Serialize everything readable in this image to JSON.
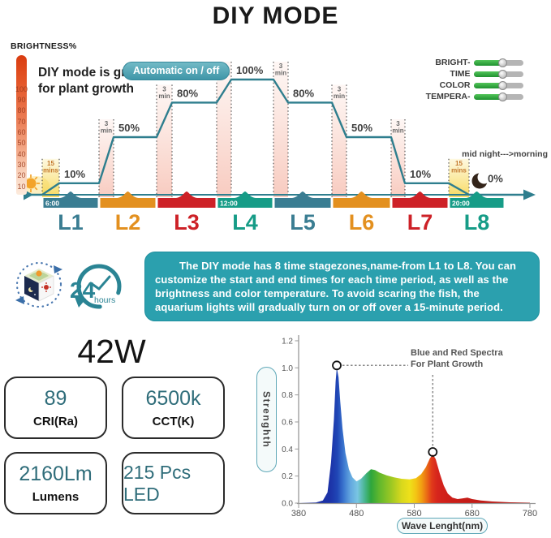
{
  "title": "DIY MODE",
  "timeline": {
    "brightness_label": "BRIGHTNESS%",
    "tagline_line1": "DIY mode is great",
    "tagline_line2": "for plant growth",
    "auto_pill_label": "Automatic on / off",
    "sliders": [
      {
        "label": "BRIGHT-"
      },
      {
        "label": "TIME"
      },
      {
        "label": "COLOR"
      },
      {
        "label": "TEMPERA-"
      }
    ],
    "midnight_note": "mid night--->morning"
  },
  "description": {
    "text": "The DIY mode has 8 time stagezones,name-from L1 to L8. You can customize the start and end times for each time period, as well as the brightness and color temperature. To avoid scaring the fish, the aquarium lights will gradually turn on or off over a 15-minute period."
  },
  "cycle_icons": {
    "hours_value": "24",
    "hours_unit": "hours"
  },
  "specs": {
    "wattage": "42W",
    "boxes": [
      {
        "value": "89",
        "caption": "CRI(Ra)"
      },
      {
        "value": "6500k",
        "caption": "CCT(K)"
      },
      {
        "value": "2160Lm",
        "caption": "Lumens"
      },
      {
        "value": "215 Pcs LED",
        "caption": ""
      }
    ]
  },
  "spectrum_labels": {
    "ylabel": "Strenghth",
    "xlabel": "Wave Lenght(nm)",
    "annotation_line1": "Blue and Red Spectra",
    "annotation_line2": "For Plant Growth"
  },
  "colors": {
    "accent_teal": "#2a8494",
    "curve_teal": "#2e7e8e",
    "description_bg": "#2ba0ae",
    "thermometer_top": "#d93c10",
    "spec_value_teal": "#2f6d7a"
  },
  "chart_data": [
    {
      "type": "line",
      "title": "DIY mode 24h brightness schedule",
      "ylabel": "BRIGHTNESS%",
      "y_ticks": [
        100,
        90,
        80,
        70,
        60,
        50,
        40,
        30,
        20,
        10
      ],
      "x_times_shown": [
        "6:00",
        "12:00",
        "20:00"
      ],
      "stages": [
        {
          "label": "L1",
          "start_time": "6:00",
          "brightness_pct": 10,
          "level_label": "10%",
          "ramp_label": "15 mins",
          "bar_color": "#3a7d92"
        },
        {
          "label": "L2",
          "brightness_pct": 50,
          "level_label": "50%",
          "ramp_label": "3 min",
          "bar_color": "#e3901f"
        },
        {
          "label": "L3",
          "brightness_pct": 80,
          "level_label": "80%",
          "ramp_label": "3 min",
          "bar_color": "#cd2127"
        },
        {
          "label": "L4",
          "start_time": "12:00",
          "brightness_pct": 100,
          "level_label": "100%",
          "ramp_label": "3 min",
          "bar_color": "#169c87"
        },
        {
          "label": "L5",
          "brightness_pct": 80,
          "level_label": "80%",
          "ramp_label": "3 min",
          "bar_color": "#3a7d92"
        },
        {
          "label": "L6",
          "brightness_pct": 50,
          "level_label": "50%",
          "ramp_label": "3 min",
          "bar_color": "#e3901f"
        },
        {
          "label": "L7",
          "brightness_pct": 10,
          "level_label": "10%",
          "ramp_label": "3 min",
          "bar_color": "#cd2127"
        },
        {
          "label": "L8",
          "start_time": "20:00",
          "brightness_pct": 0,
          "level_label": "0%",
          "ramp_label": "15 mins",
          "bar_color": "#169c87"
        }
      ]
    },
    {
      "type": "area",
      "xlabel": "Wave Lenght(nm)",
      "ylabel": "Strenghth",
      "xlim": [
        380,
        780
      ],
      "ylim": [
        0,
        1.2
      ],
      "x_ticks": [
        380,
        480,
        580,
        680,
        780
      ],
      "y_ticks": [
        0.0,
        0.2,
        0.4,
        0.6,
        0.8,
        1.0,
        1.2
      ],
      "annotation": "Blue and Red Spectra For Plant Growth",
      "peaks": [
        {
          "wavelength_nm": 446,
          "strength": 1.0
        },
        {
          "wavelength_nm": 612,
          "strength": 0.36
        }
      ],
      "points": [
        [
          380,
          0
        ],
        [
          410,
          0.005
        ],
        [
          422,
          0.02
        ],
        [
          430,
          0.08
        ],
        [
          436,
          0.3
        ],
        [
          441,
          0.62
        ],
        [
          444,
          0.9
        ],
        [
          446,
          1.0
        ],
        [
          449,
          0.93
        ],
        [
          452,
          0.75
        ],
        [
          456,
          0.55
        ],
        [
          461,
          0.37
        ],
        [
          467,
          0.25
        ],
        [
          473,
          0.19
        ],
        [
          480,
          0.16
        ],
        [
          488,
          0.18
        ],
        [
          497,
          0.22
        ],
        [
          505,
          0.25
        ],
        [
          512,
          0.245
        ],
        [
          520,
          0.225
        ],
        [
          532,
          0.205
        ],
        [
          545,
          0.19
        ],
        [
          558,
          0.18
        ],
        [
          572,
          0.175
        ],
        [
          583,
          0.185
        ],
        [
          592,
          0.215
        ],
        [
          600,
          0.265
        ],
        [
          607,
          0.33
        ],
        [
          612,
          0.36
        ],
        [
          617,
          0.325
        ],
        [
          624,
          0.22
        ],
        [
          631,
          0.13
        ],
        [
          638,
          0.07
        ],
        [
          646,
          0.04
        ],
        [
          655,
          0.03
        ],
        [
          663,
          0.035
        ],
        [
          672,
          0.04
        ],
        [
          680,
          0.03
        ],
        [
          695,
          0.02
        ],
        [
          715,
          0.012
        ],
        [
          745,
          0.006
        ],
        [
          780,
          0.003
        ]
      ]
    }
  ]
}
